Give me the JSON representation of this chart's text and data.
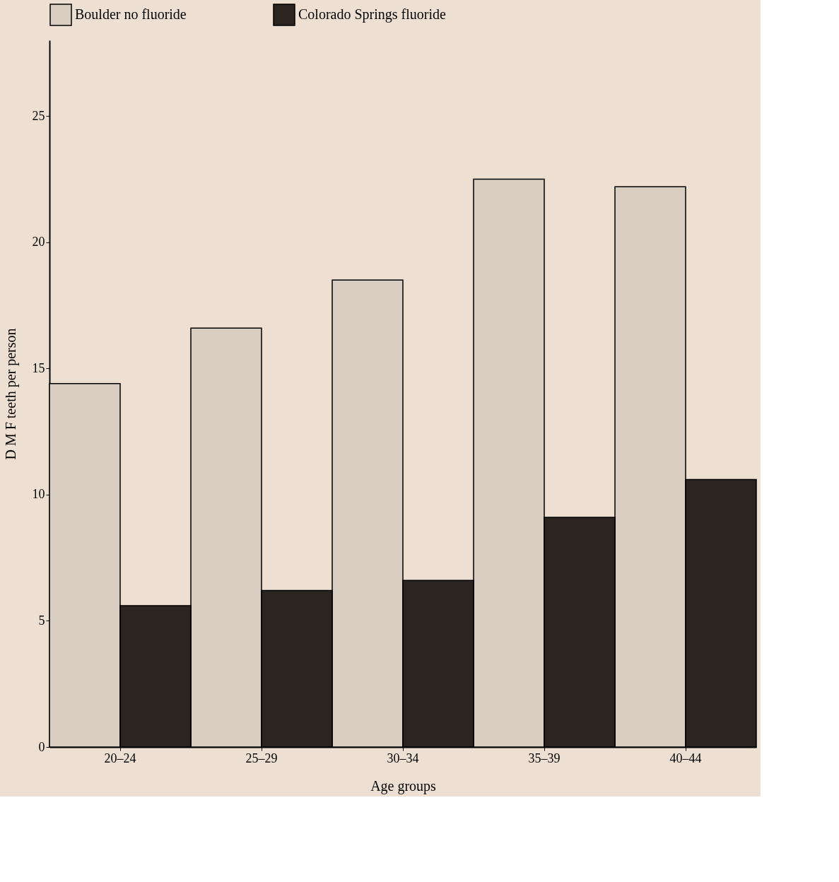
{
  "chart_data": {
    "type": "bar",
    "xlabel": "Age groups",
    "ylabel": "D M F teeth per person",
    "categories": [
      "20–24",
      "25–29",
      "30–34",
      "35–39",
      "40–44"
    ],
    "series": [
      {
        "name": "Boulder no fluoride",
        "color": "#d9ccc0",
        "values": [
          14.4,
          16.6,
          18.5,
          22.5,
          22.2
        ]
      },
      {
        "name": "Colorado Springs fluoride",
        "color": "#2b2522",
        "values": [
          5.6,
          6.2,
          6.6,
          9.1,
          10.6
        ]
      }
    ],
    "ylim": [
      0,
      28
    ],
    "yticks": [
      0,
      5,
      10,
      15,
      20,
      25
    ],
    "grid": false,
    "legend": "top"
  }
}
